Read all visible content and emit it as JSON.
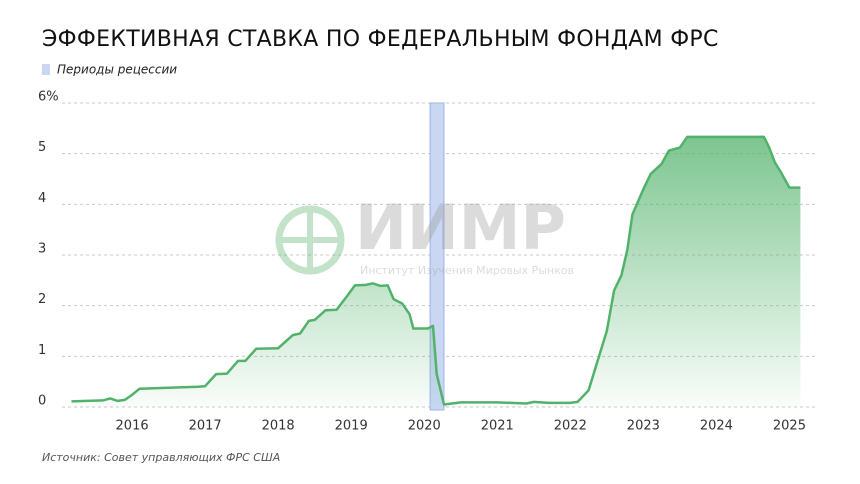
{
  "chart_data": {
    "type": "area",
    "title": "ЭФФЕКТИВНАЯ СТАВКА ПО ФЕДЕРАЛЬНЫМ ФОНДАМ ФРС",
    "source": "Источник: Совет управляющих ФРС США",
    "watermark": {
      "name": "ИИМР",
      "subtitle": "Институт Изучения Мировых Рынков"
    },
    "recession": {
      "name": "Периоды рецессии",
      "start": 2020.08,
      "end": 2020.27,
      "color": "#c9d7f3"
    },
    "color": "#52b26b",
    "x": [
      2015.17,
      2015.6,
      2015.7,
      2015.8,
      2015.9,
      2016.0,
      2016.1,
      2016.3,
      2016.9,
      2017.0,
      2017.15,
      2017.3,
      2017.45,
      2017.55,
      2017.7,
      2018.0,
      2018.2,
      2018.3,
      2018.42,
      2018.5,
      2018.65,
      2018.8,
      2018.95,
      2019.05,
      2019.2,
      2019.3,
      2019.4,
      2019.5,
      2019.58,
      2019.7,
      2019.8,
      2019.85,
      2020.05,
      2020.12,
      2020.17,
      2020.27,
      2020.5,
      2021.0,
      2021.4,
      2021.5,
      2021.7,
      2022.0,
      2022.1,
      2022.25,
      2022.35,
      2022.5,
      2022.6,
      2022.7,
      2022.78,
      2022.85,
      2023.0,
      2023.1,
      2023.25,
      2023.35,
      2023.5,
      2023.6,
      2024.65,
      2024.72,
      2024.8,
      2024.88,
      2025.0,
      2025.15
    ],
    "values": [
      0.11,
      0.13,
      0.17,
      0.12,
      0.14,
      0.24,
      0.36,
      0.37,
      0.4,
      0.41,
      0.65,
      0.66,
      0.91,
      0.91,
      1.15,
      1.16,
      1.42,
      1.45,
      1.7,
      1.72,
      1.91,
      1.92,
      2.2,
      2.4,
      2.41,
      2.44,
      2.39,
      2.4,
      2.13,
      2.04,
      1.83,
      1.55,
      1.55,
      1.6,
      0.65,
      0.05,
      0.09,
      0.09,
      0.07,
      0.1,
      0.08,
      0.08,
      0.1,
      0.33,
      0.8,
      1.5,
      2.3,
      2.6,
      3.1,
      3.8,
      4.3,
      4.6,
      4.8,
      5.06,
      5.12,
      5.33,
      5.33,
      5.13,
      4.83,
      4.64,
      4.33,
      4.33
    ],
    "xlim": [
      2015.15,
      2025.35
    ],
    "xticks": [
      2016,
      2017,
      2018,
      2019,
      2020,
      2021,
      2022,
      2023,
      2024,
      2025
    ],
    "ylim": [
      0,
      6
    ],
    "yticks": [
      0,
      1,
      2,
      3,
      4,
      5,
      {
        "value": 6,
        "label": "6%"
      }
    ],
    "grid": true
  }
}
